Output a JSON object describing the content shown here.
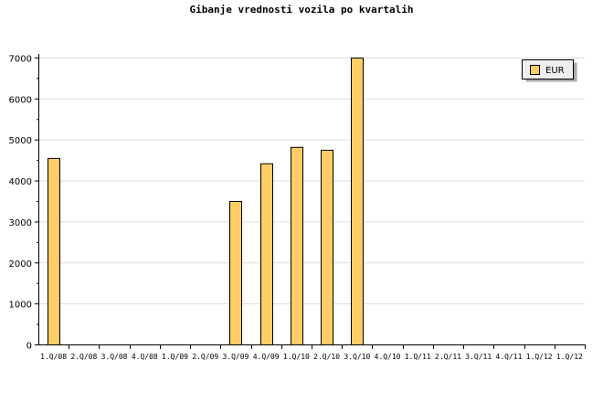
{
  "chart_data": {
    "type": "bar",
    "title": "Gibanje vrednosti vozila po kvartalih",
    "xlabel": "",
    "ylabel": "",
    "categories": [
      "1.Q/08",
      "2.Q/08",
      "3.Q/08",
      "4.Q/08",
      "1.Q/09",
      "2.Q/09",
      "3.Q/09",
      "4.Q/09",
      "1.Q/10",
      "2.Q/10",
      "3.Q/10",
      "4.Q/10",
      "1.Q/11",
      "2.Q/11",
      "3.Q/11",
      "4.Q/11",
      "1.Q/12",
      "1.Q/12"
    ],
    "series": [
      {
        "name": "EUR",
        "color": "#ffcc66",
        "values": [
          4550,
          null,
          null,
          null,
          null,
          null,
          3500,
          4420,
          4820,
          4750,
          7000,
          null,
          null,
          null,
          null,
          null,
          null,
          null
        ]
      }
    ],
    "ylim": [
      0,
      7000
    ],
    "yticks": [
      0,
      1000,
      2000,
      3000,
      4000,
      5000,
      6000,
      7000
    ],
    "grid": true,
    "legend": "top-right"
  }
}
